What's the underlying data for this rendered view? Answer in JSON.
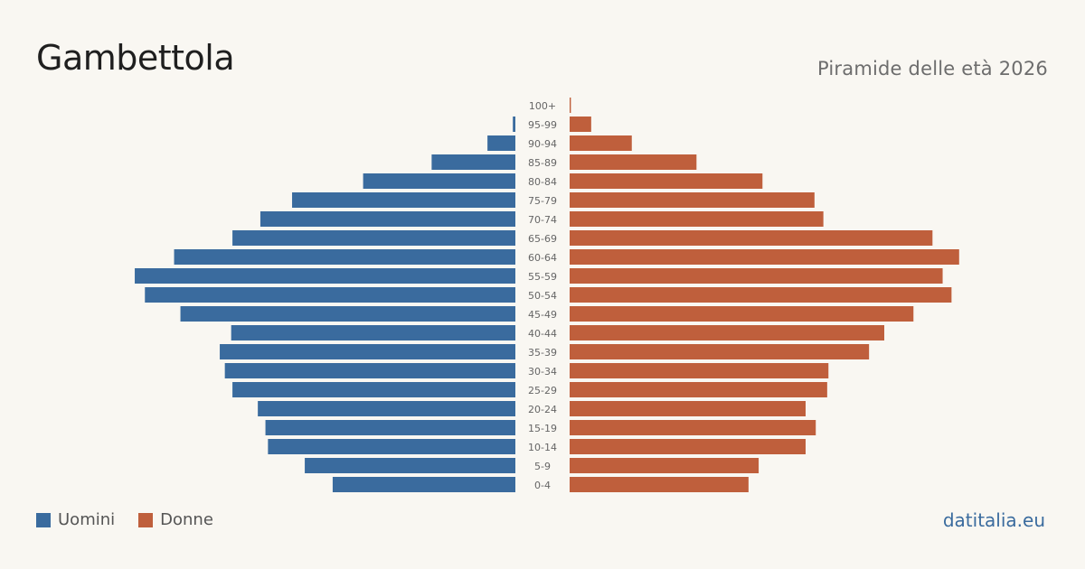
{
  "header": {
    "title": "Gambettola",
    "subtitle": "Piramide delle età 2026"
  },
  "colors": {
    "men": "#3a6b9e",
    "women": "#bf5f3c",
    "brand": "#3a6b9e",
    "tick_text": "#666666"
  },
  "legend": {
    "men_label": "Uomini",
    "women_label": "Donne"
  },
  "footer": {
    "brand": "datitalia.eu"
  },
  "chart_data": {
    "type": "bar",
    "orientation": "horizontal-population-pyramid",
    "categories": [
      "100+",
      "95-99",
      "90-94",
      "85-89",
      "80-84",
      "75-79",
      "70-74",
      "65-69",
      "60-64",
      "55-59",
      "50-54",
      "45-49",
      "40-44",
      "35-39",
      "30-34",
      "25-29",
      "20-24",
      "15-19",
      "10-14",
      "5-9",
      "0-4"
    ],
    "series": [
      {
        "name": "Uomini",
        "values": [
          0,
          2,
          22,
          66,
          120,
          176,
          201,
          223,
          269,
          300,
          292,
          264,
          224,
          233,
          229,
          223,
          203,
          197,
          195,
          166,
          144
        ]
      },
      {
        "name": "Donne",
        "values": [
          1,
          17,
          49,
          100,
          152,
          193,
          200,
          286,
          307,
          294,
          301,
          271,
          248,
          236,
          204,
          203,
          186,
          194,
          186,
          149,
          141
        ]
      }
    ],
    "max_value": 310,
    "legend_position": "bottom-left",
    "grid": false
  }
}
